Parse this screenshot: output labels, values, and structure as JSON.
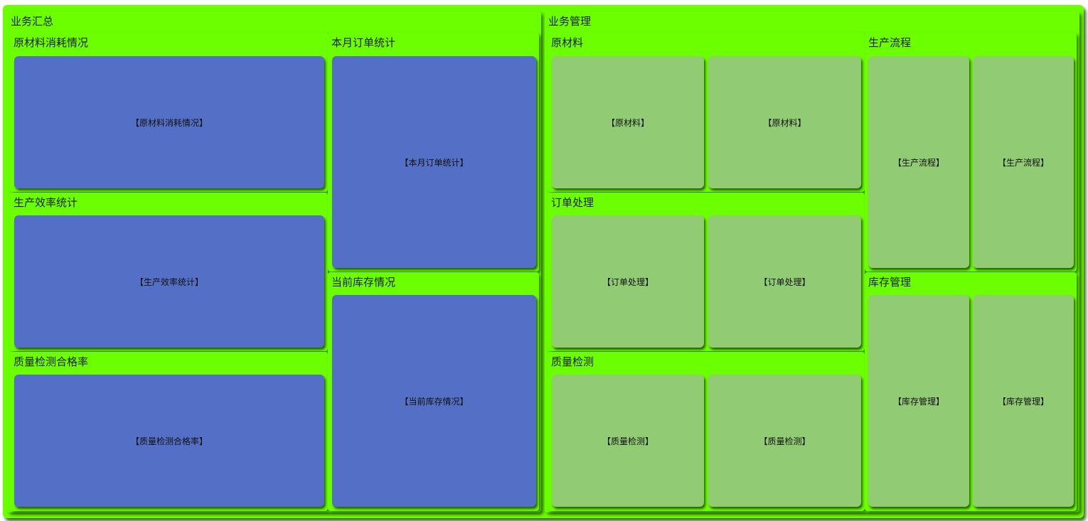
{
  "colors": {
    "border": "#6cff00",
    "blue_leaf": "#5470c6",
    "green_leaf": "#91cc75"
  },
  "summary": {
    "title": "业务汇总",
    "material_consumption": {
      "title": "原材料消耗情况",
      "label": "【原材料消耗情况】"
    },
    "production_efficiency": {
      "title": "生产效率统计",
      "label": "【生产效率统计】"
    },
    "quality_pass_rate": {
      "title": "质量检测合格率",
      "label": "【质量检测合格率】"
    },
    "monthly_orders": {
      "title": "本月订单统计",
      "label": "【本月订单统计】"
    },
    "current_inventory": {
      "title": "当前库存情况",
      "label": "【当前库存情况】"
    }
  },
  "management": {
    "title": "业务管理",
    "raw_material": {
      "title": "原材料",
      "labels": [
        "【原材料】",
        "【原材料】"
      ]
    },
    "order_processing": {
      "title": "订单处理",
      "labels": [
        "【订单处理】",
        "【订单处理】"
      ]
    },
    "quality_inspection": {
      "title": "质量检测",
      "labels": [
        "【质量检测】",
        "【质量检测】"
      ]
    },
    "production_flow": {
      "title": "生产流程",
      "labels": [
        "【生产流程】",
        "【生产流程】"
      ]
    },
    "inventory_management": {
      "title": "库存管理",
      "labels": [
        "【库存管理】",
        "【库存管理】"
      ]
    }
  }
}
